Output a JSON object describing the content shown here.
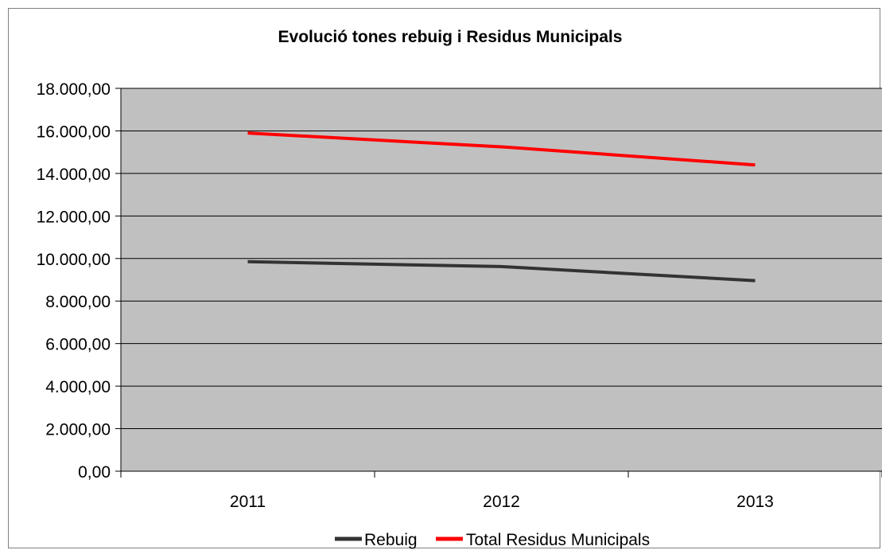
{
  "chart_data": {
    "type": "line",
    "title": "Evolució tones rebuig i Residus Municipals",
    "xlabel": "",
    "ylabel": "",
    "categories": [
      "2011",
      "2012",
      "2013"
    ],
    "ylim": [
      0,
      18000
    ],
    "yticks": [
      0,
      2000,
      4000,
      6000,
      8000,
      10000,
      12000,
      14000,
      16000,
      18000
    ],
    "ytick_labels": [
      "0,00",
      "2.000,00",
      "4.000,00",
      "6.000,00",
      "8.000,00",
      "10.000,00",
      "12.000,00",
      "14.000,00",
      "16.000,00",
      "18.000,00"
    ],
    "grid": true,
    "plot_background": "#c0c0c0",
    "legend_position": "bottom",
    "series": [
      {
        "name": "Rebuig",
        "color": "#333333",
        "values": [
          9850,
          9620,
          8960
        ]
      },
      {
        "name": "Total Residus Municipals",
        "color": "#ff0000",
        "values": [
          15900,
          15250,
          14400
        ]
      }
    ]
  }
}
